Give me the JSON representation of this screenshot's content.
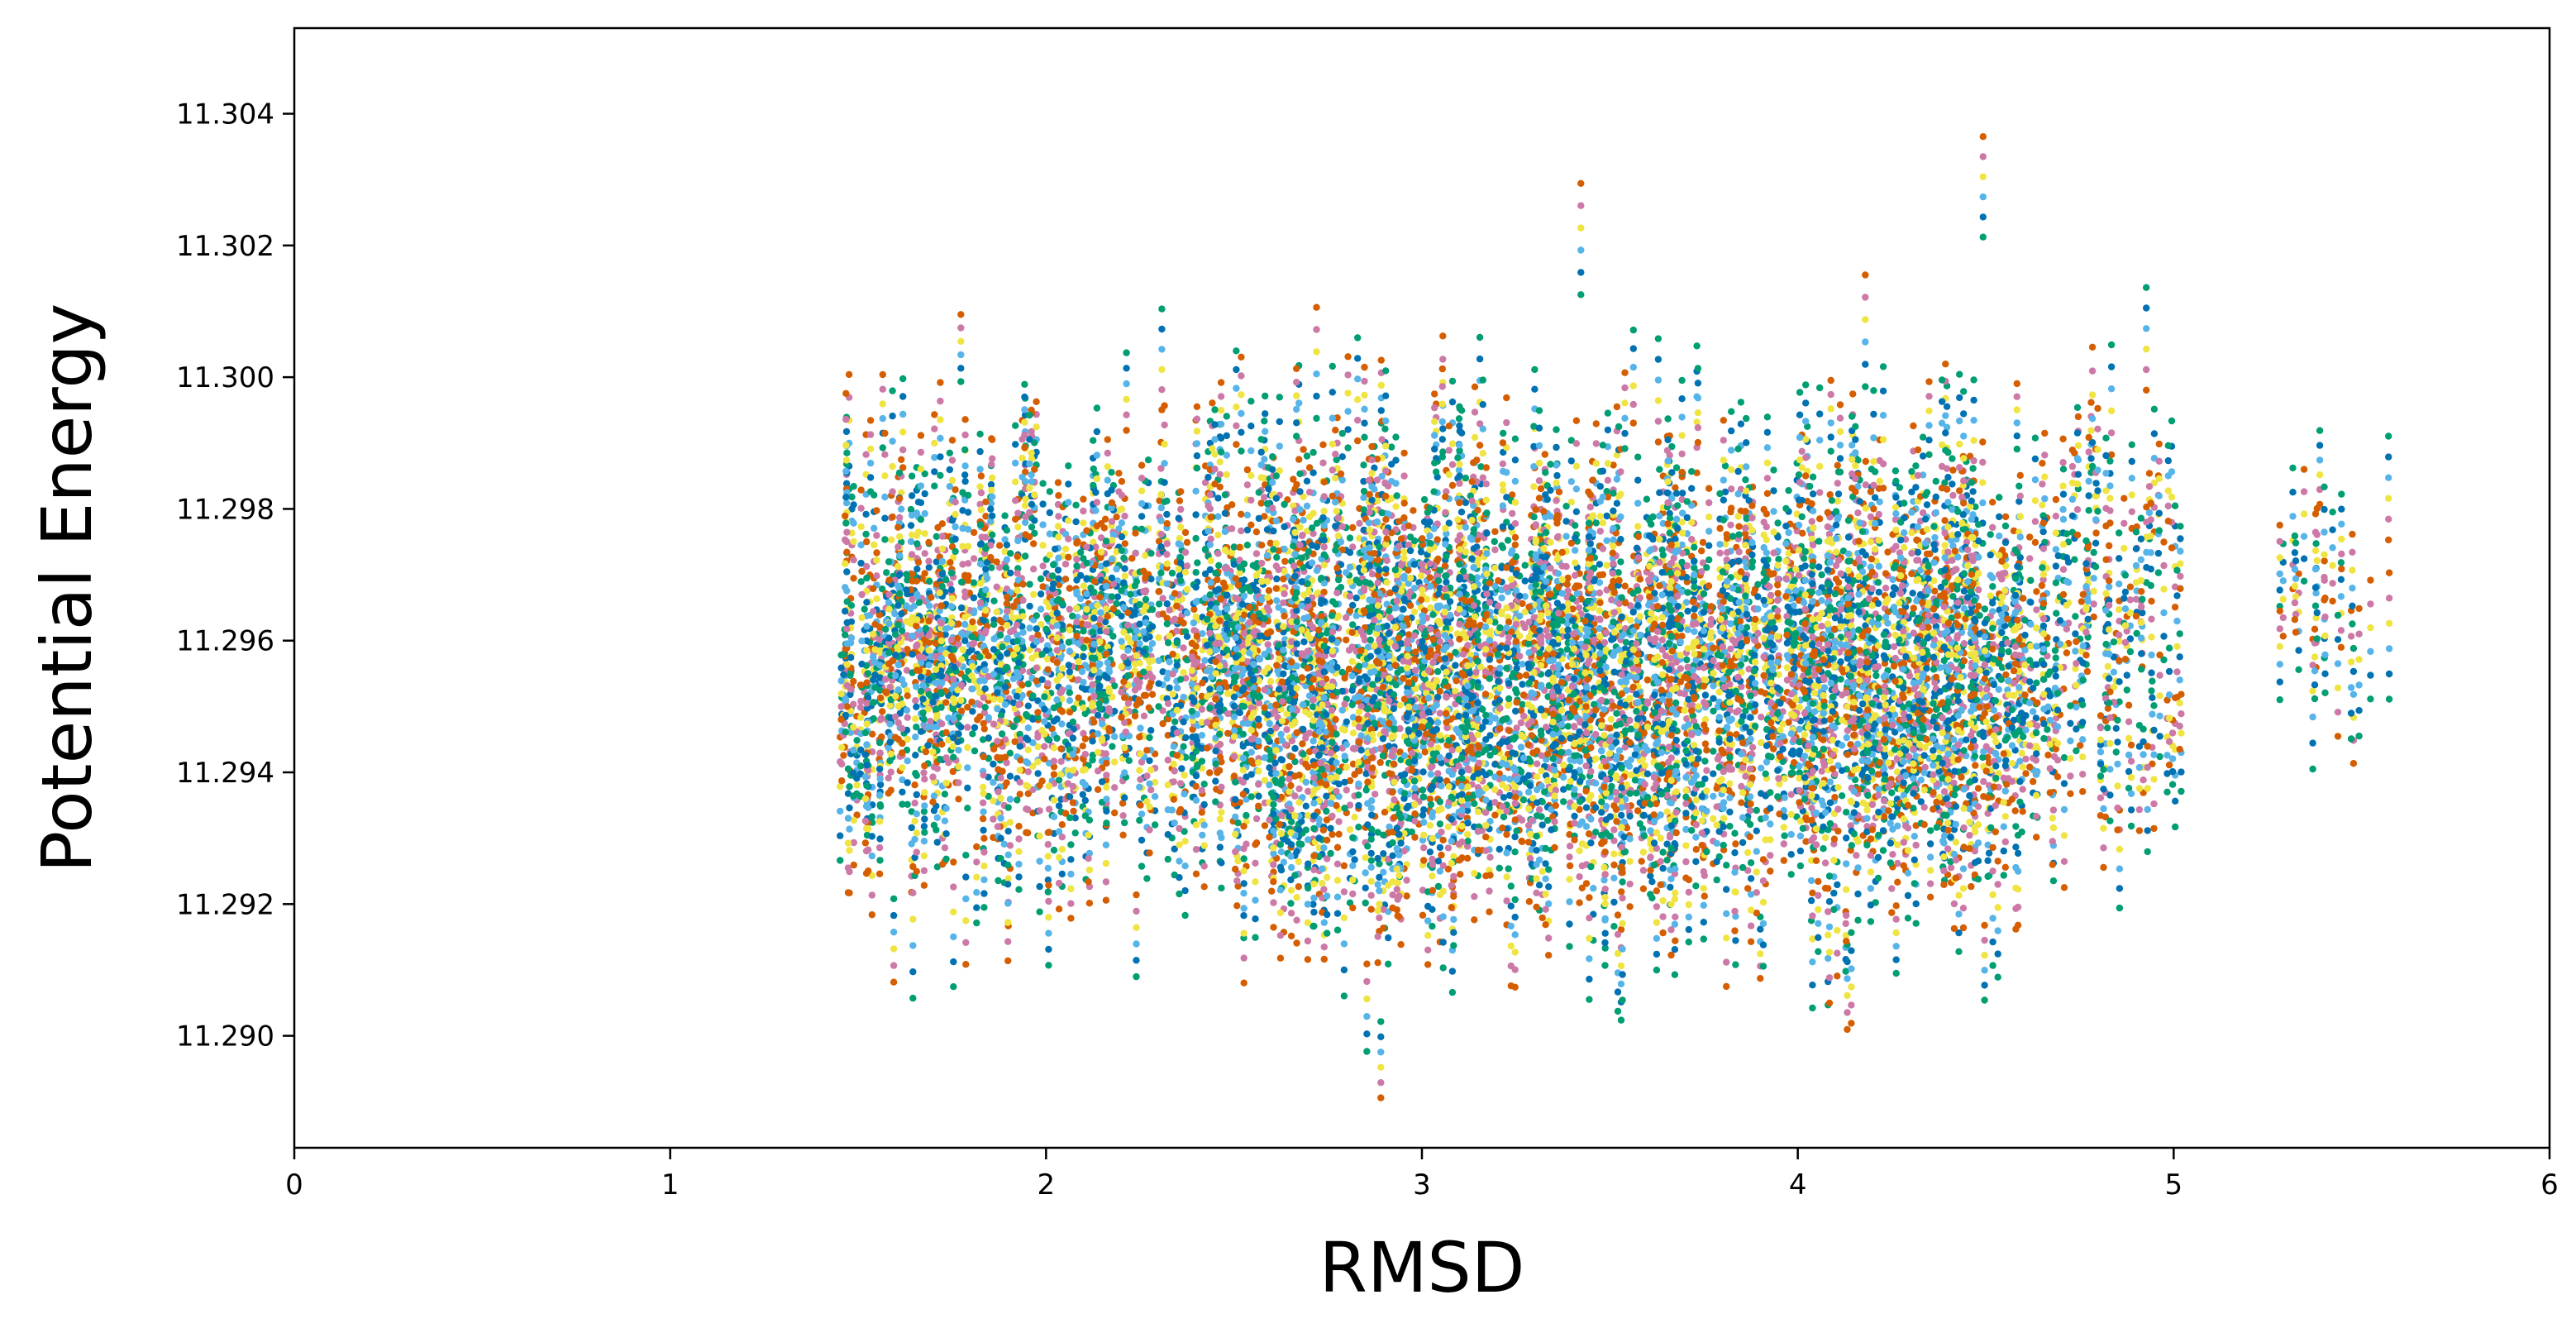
{
  "chart_data": {
    "type": "scatter",
    "xlabel": "RMSD",
    "ylabel": "Potential Energy",
    "xlim": [
      0,
      6
    ],
    "ylim": [
      11.2883,
      11.3053
    ],
    "x_ticks": [
      0,
      1,
      2,
      3,
      4,
      5,
      6
    ],
    "x_tick_labels": [
      "0",
      "1",
      "2",
      "3",
      "4",
      "5",
      "6"
    ],
    "y_ticks": [
      11.29,
      11.292,
      11.294,
      11.296,
      11.298,
      11.3,
      11.302,
      11.304
    ],
    "y_tick_labels": [
      "11.290",
      "11.292",
      "11.294",
      "11.296",
      "11.298",
      "11.300",
      "11.302",
      "11.304"
    ],
    "grid": false,
    "series_colors": [
      "#d55e00",
      "#cc79a7",
      "#f0e442",
      "#56b4e9",
      "#0072b2",
      "#009e73"
    ],
    "density_clusters": [
      {
        "x_range": [
          1.45,
          2.05
        ],
        "y_center": 11.2958,
        "y_spread": 0.0022,
        "weight": 1.0
      },
      {
        "x_range": [
          2.05,
          2.5
        ],
        "y_center": 11.2958,
        "y_spread": 0.0019,
        "weight": 0.7
      },
      {
        "x_range": [
          2.5,
          3.6
        ],
        "y_center": 11.2955,
        "y_spread": 0.0023,
        "weight": 2.6
      },
      {
        "x_range": [
          3.6,
          4.6
        ],
        "y_center": 11.2955,
        "y_spread": 0.0023,
        "weight": 2.2
      },
      {
        "x_range": [
          4.6,
          5.02
        ],
        "y_center": 11.2962,
        "y_spread": 0.002,
        "weight": 0.35
      },
      {
        "x_range": [
          5.28,
          5.58
        ],
        "y_center": 11.2965,
        "y_spread": 0.0012,
        "weight": 0.08
      }
    ]
  }
}
